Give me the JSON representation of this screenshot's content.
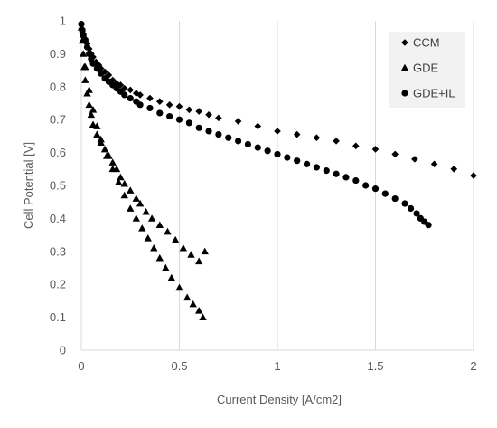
{
  "chart_data": {
    "type": "scatter",
    "xlabel": "Current Density [A/cm2]",
    "ylabel": "Cell Potential [V]",
    "xlim": [
      0,
      2
    ],
    "ylim": [
      0,
      1
    ],
    "x_ticks": [
      "0",
      "0.5",
      "1",
      "1.5",
      "2"
    ],
    "y_ticks": [
      "0",
      "0.1",
      "0.2",
      "0.3",
      "0.4",
      "0.5",
      "0.6",
      "0.7",
      "0.8",
      "0.9",
      "1"
    ],
    "grid": "vertical",
    "legend_position": "top-right",
    "colors": {
      "markers": "#000000",
      "gridline": "#d9d9d9",
      "legend_bg": "#f2f2f2",
      "text": "#595959"
    },
    "series": [
      {
        "name": "CCM",
        "marker": "diamond",
        "points": [
          [
            0.0,
            0.99
          ],
          [
            0.005,
            0.975
          ],
          [
            0.01,
            0.96
          ],
          [
            0.02,
            0.945
          ],
          [
            0.03,
            0.93
          ],
          [
            0.04,
            0.915
          ],
          [
            0.05,
            0.9
          ],
          [
            0.06,
            0.89
          ],
          [
            0.075,
            0.875
          ],
          [
            0.09,
            0.865
          ],
          [
            0.1,
            0.855
          ],
          [
            0.12,
            0.845
          ],
          [
            0.14,
            0.835
          ],
          [
            0.16,
            0.82
          ],
          [
            0.18,
            0.81
          ],
          [
            0.2,
            0.805
          ],
          [
            0.22,
            0.795
          ],
          [
            0.25,
            0.79
          ],
          [
            0.28,
            0.78
          ],
          [
            0.3,
            0.775
          ],
          [
            0.35,
            0.765
          ],
          [
            0.4,
            0.755
          ],
          [
            0.45,
            0.745
          ],
          [
            0.5,
            0.74
          ],
          [
            0.55,
            0.73
          ],
          [
            0.6,
            0.725
          ],
          [
            0.65,
            0.715
          ],
          [
            0.7,
            0.705
          ],
          [
            0.8,
            0.695
          ],
          [
            0.9,
            0.68
          ],
          [
            1.0,
            0.665
          ],
          [
            1.1,
            0.655
          ],
          [
            1.2,
            0.645
          ],
          [
            1.3,
            0.635
          ],
          [
            1.4,
            0.62
          ],
          [
            1.5,
            0.61
          ],
          [
            1.6,
            0.595
          ],
          [
            1.7,
            0.58
          ],
          [
            1.8,
            0.565
          ],
          [
            1.9,
            0.55
          ],
          [
            2.0,
            0.53
          ]
        ]
      },
      {
        "name": "GDE",
        "marker": "triangle",
        "points": [
          [
            0.0,
            0.98
          ],
          [
            0.005,
            0.94
          ],
          [
            0.01,
            0.9
          ],
          [
            0.015,
            0.86
          ],
          [
            0.02,
            0.82
          ],
          [
            0.03,
            0.78
          ],
          [
            0.04,
            0.745
          ],
          [
            0.05,
            0.715
          ],
          [
            0.06,
            0.685
          ],
          [
            0.08,
            0.655
          ],
          [
            0.1,
            0.63
          ],
          [
            0.12,
            0.61
          ],
          [
            0.14,
            0.59
          ],
          [
            0.16,
            0.57
          ],
          [
            0.18,
            0.55
          ],
          [
            0.2,
            0.525
          ],
          [
            0.22,
            0.505
          ],
          [
            0.25,
            0.485
          ],
          [
            0.28,
            0.46
          ],
          [
            0.3,
            0.445
          ],
          [
            0.33,
            0.42
          ],
          [
            0.36,
            0.4
          ],
          [
            0.4,
            0.38
          ],
          [
            0.44,
            0.36
          ],
          [
            0.48,
            0.335
          ],
          [
            0.52,
            0.31
          ],
          [
            0.56,
            0.29
          ],
          [
            0.6,
            0.27
          ],
          [
            0.63,
            0.3
          ],
          [
            0.02,
            0.86
          ],
          [
            0.04,
            0.79
          ],
          [
            0.06,
            0.73
          ],
          [
            0.08,
            0.68
          ],
          [
            0.1,
            0.64
          ],
          [
            0.13,
            0.59
          ],
          [
            0.16,
            0.55
          ],
          [
            0.19,
            0.51
          ],
          [
            0.22,
            0.47
          ],
          [
            0.25,
            0.43
          ],
          [
            0.28,
            0.4
          ],
          [
            0.31,
            0.37
          ],
          [
            0.34,
            0.34
          ],
          [
            0.37,
            0.31
          ],
          [
            0.4,
            0.28
          ],
          [
            0.43,
            0.25
          ],
          [
            0.46,
            0.22
          ],
          [
            0.5,
            0.19
          ],
          [
            0.54,
            0.16
          ],
          [
            0.57,
            0.14
          ],
          [
            0.6,
            0.12
          ],
          [
            0.62,
            0.1
          ]
        ]
      },
      {
        "name": "GDE+IL",
        "marker": "circle",
        "points": [
          [
            0.0,
            0.99
          ],
          [
            0.005,
            0.97
          ],
          [
            0.01,
            0.955
          ],
          [
            0.02,
            0.94
          ],
          [
            0.03,
            0.92
          ],
          [
            0.04,
            0.9
          ],
          [
            0.05,
            0.885
          ],
          [
            0.06,
            0.87
          ],
          [
            0.08,
            0.855
          ],
          [
            0.1,
            0.84
          ],
          [
            0.12,
            0.825
          ],
          [
            0.14,
            0.815
          ],
          [
            0.16,
            0.805
          ],
          [
            0.18,
            0.795
          ],
          [
            0.2,
            0.785
          ],
          [
            0.22,
            0.775
          ],
          [
            0.25,
            0.765
          ],
          [
            0.28,
            0.755
          ],
          [
            0.3,
            0.745
          ],
          [
            0.35,
            0.735
          ],
          [
            0.4,
            0.72
          ],
          [
            0.45,
            0.71
          ],
          [
            0.5,
            0.7
          ],
          [
            0.55,
            0.69
          ],
          [
            0.6,
            0.675
          ],
          [
            0.65,
            0.665
          ],
          [
            0.7,
            0.655
          ],
          [
            0.75,
            0.645
          ],
          [
            0.8,
            0.635
          ],
          [
            0.85,
            0.625
          ],
          [
            0.9,
            0.615
          ],
          [
            0.95,
            0.605
          ],
          [
            1.0,
            0.595
          ],
          [
            1.05,
            0.585
          ],
          [
            1.1,
            0.575
          ],
          [
            1.15,
            0.565
          ],
          [
            1.2,
            0.555
          ],
          [
            1.25,
            0.545
          ],
          [
            1.3,
            0.535
          ],
          [
            1.35,
            0.525
          ],
          [
            1.4,
            0.515
          ],
          [
            1.45,
            0.5
          ],
          [
            1.5,
            0.49
          ],
          [
            1.55,
            0.475
          ],
          [
            1.6,
            0.46
          ],
          [
            1.65,
            0.445
          ],
          [
            1.68,
            0.43
          ],
          [
            1.71,
            0.415
          ],
          [
            1.73,
            0.4
          ],
          [
            1.75,
            0.39
          ],
          [
            1.77,
            0.38
          ]
        ]
      }
    ]
  }
}
